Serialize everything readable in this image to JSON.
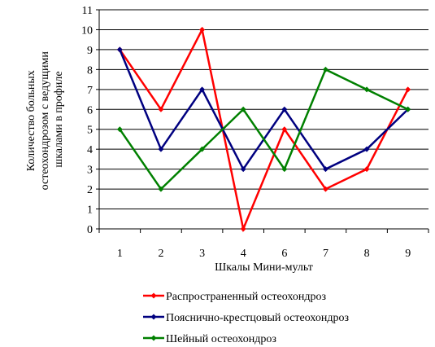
{
  "chart_data": {
    "type": "line",
    "title": "",
    "xlabel": "Шкалы Мини-мульт",
    "ylabel_lines": [
      "Количество больных",
      "остеохондрозом с ведущими",
      "шкалами в профиле"
    ],
    "categories": [
      "1",
      "2",
      "3",
      "4",
      "6",
      "7",
      "8",
      "9"
    ],
    "ylim": [
      0,
      11
    ],
    "yticks": [
      "0",
      "1",
      "2",
      "3",
      "4",
      "5",
      "6",
      "7",
      "8",
      "9",
      "10",
      "11"
    ],
    "grid": "horizontal",
    "legend_position": "bottom",
    "series": [
      {
        "name": "Распространенный остеохондроз",
        "color": "#ff0000",
        "values": [
          9,
          6,
          10,
          0,
          5,
          2,
          3,
          7
        ]
      },
      {
        "name": "Пояснично-крестцовый остеохондроз",
        "color": "#000080",
        "values": [
          9,
          4,
          7,
          3,
          6,
          3,
          4,
          6
        ]
      },
      {
        "name": "Шейный остеохондроз",
        "color": "#008000",
        "values": [
          5,
          2,
          4,
          6,
          3,
          8,
          7,
          6
        ]
      }
    ]
  }
}
